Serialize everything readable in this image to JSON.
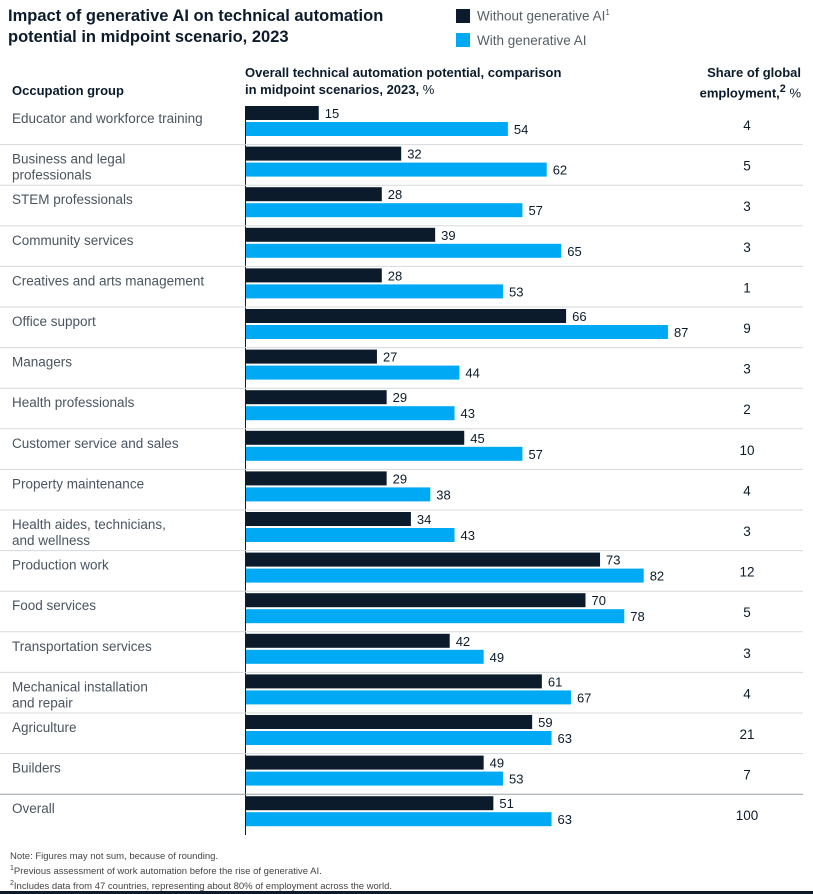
{
  "title": "Impact of generative AI on technical automation potential in midpoint scenario, 2023",
  "legend": [
    {
      "label": "Without generative AI",
      "sup": "1",
      "color": "#0b1b2b"
    },
    {
      "label": "With generative AI",
      "sup": "",
      "color": "#00a9f4"
    }
  ],
  "headers": {
    "occupation": "Occupation group",
    "potential_bold": "Overall technical automation potential, comparison in midpoint scenarios, 2023,",
    "potential_unit": "%",
    "share_line1": "Share of global",
    "share_line2": "employment,",
    "share_sup": "2",
    "share_unit": "%"
  },
  "chart_data": {
    "type": "bar",
    "orientation": "horizontal",
    "xlim": [
      0,
      100
    ],
    "grid": false,
    "categories": [
      [
        "Educator and workforce training"
      ],
      [
        "Business and legal",
        "professionals"
      ],
      [
        "STEM professionals"
      ],
      [
        "Community services"
      ],
      [
        "Creatives and arts management"
      ],
      [
        "Office support"
      ],
      [
        "Managers"
      ],
      [
        "Health professionals"
      ],
      [
        "Customer service and sales"
      ],
      [
        "Property maintenance"
      ],
      [
        "Health aides, technicians,",
        "and wellness"
      ],
      [
        "Production work"
      ],
      [
        "Food services"
      ],
      [
        "Transportation services"
      ],
      [
        "Mechanical installation",
        "and repair"
      ],
      [
        "Agriculture"
      ],
      [
        "Builders"
      ],
      [
        "Overall"
      ]
    ],
    "series": [
      {
        "name": "Without generative AI",
        "color": "#0b1b2b",
        "values": [
          15,
          32,
          28,
          39,
          28,
          66,
          27,
          29,
          45,
          29,
          34,
          73,
          70,
          42,
          61,
          59,
          49,
          51
        ]
      },
      {
        "name": "With generative AI",
        "color": "#00a9f4",
        "values": [
          54,
          62,
          57,
          65,
          53,
          87,
          44,
          43,
          57,
          38,
          43,
          82,
          78,
          49,
          67,
          63,
          53,
          63
        ]
      }
    ],
    "share_of_global_employment": [
      4,
      5,
      3,
      3,
      1,
      9,
      3,
      2,
      10,
      4,
      3,
      12,
      5,
      3,
      4,
      21,
      7,
      100
    ]
  },
  "footnotes": [
    {
      "sup": "",
      "text": "Note: Figures may not sum, because of rounding."
    },
    {
      "sup": "1",
      "text": "Previous assessment of work automation before the rise of generative AI."
    },
    {
      "sup": "2",
      "text": "Includes data from 47 countries, representing about 80% of employment across the world."
    }
  ]
}
